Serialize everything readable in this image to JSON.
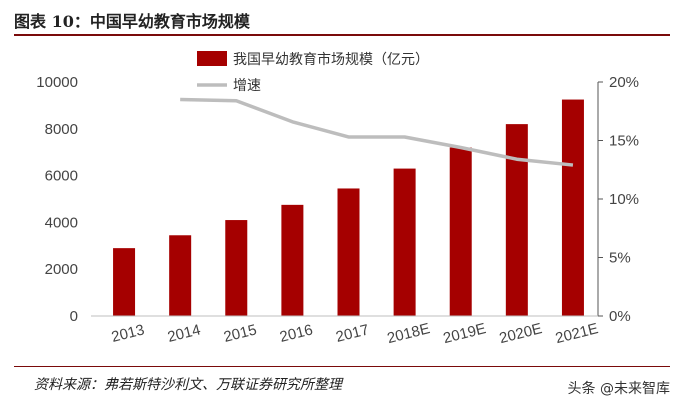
{
  "title": "图表 10：中国早幼教育市场规模",
  "source": "资料来源：弗若斯特沙利文、万联证券研究所整理",
  "watermark": "头条 @未来智库",
  "colors": {
    "bar": "#a50000",
    "line": "#bdbdbd",
    "axis": "#555555"
  },
  "chart_data": {
    "type": "bar",
    "categories": [
      "2013",
      "2014",
      "2015",
      "2016",
      "2017",
      "2018E",
      "2019E",
      "2020E",
      "2021E"
    ],
    "series": [
      {
        "name": "我国早幼教育市场规模（亿元）",
        "type": "bar",
        "axis": "left",
        "values": [
          2900,
          3450,
          4100,
          4750,
          5450,
          6300,
          7200,
          8200,
          9250
        ]
      },
      {
        "name": "增速",
        "type": "line",
        "axis": "right",
        "values": [
          null,
          18.5,
          18.4,
          16.6,
          15.3,
          15.3,
          14.4,
          13.4,
          12.9
        ]
      }
    ],
    "y_left": {
      "ylim": [
        0,
        10000
      ],
      "ticks": [
        "0",
        "2000",
        "4000",
        "6000",
        "8000",
        "10000"
      ]
    },
    "y_right": {
      "ylim": [
        0,
        20
      ],
      "ticks": [
        "0%",
        "5%",
        "10%",
        "15%",
        "20%"
      ]
    },
    "grid": false,
    "legend": "top"
  }
}
